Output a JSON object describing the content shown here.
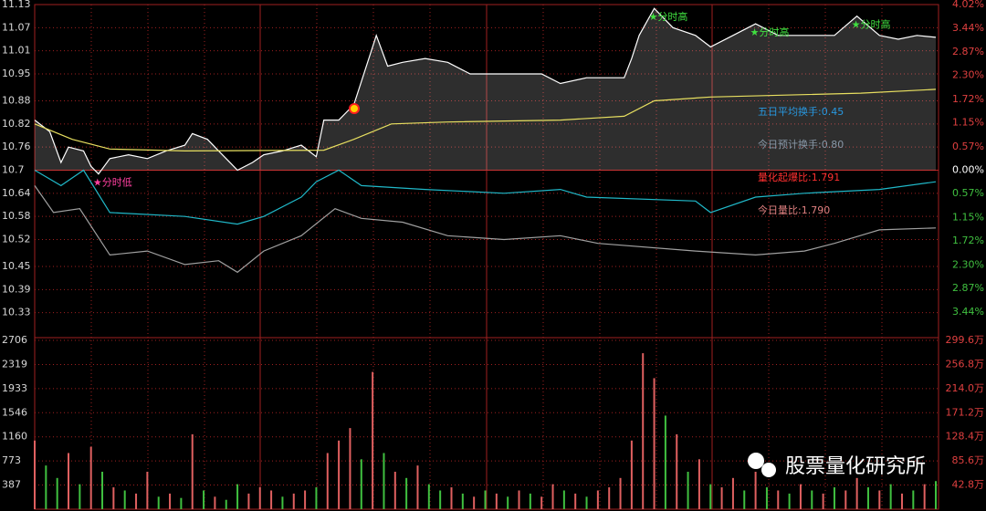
{
  "chart_data": [
    {
      "type": "line",
      "xlim": [
        0,
        240
      ],
      "ylim": [
        10.27,
        11.13
      ],
      "yticks": [
        10.33,
        10.39,
        10.45,
        10.52,
        10.58,
        10.64,
        10.7,
        10.76,
        10.82,
        10.88,
        10.95,
        11.01,
        11.07,
        11.13
      ],
      "y2lim": [
        -4.02,
        4.02
      ],
      "y2ticks": [
        {
          "value": -3.44,
          "label": "3.44%"
        },
        {
          "value": -2.87,
          "label": "2.87%"
        },
        {
          "value": -2.3,
          "label": "2.30%"
        },
        {
          "value": -1.72,
          "label": "1.72%"
        },
        {
          "value": -1.15,
          "label": "1.15%"
        },
        {
          "value": -0.57,
          "label": "0.57%"
        },
        {
          "value": 0,
          "label": "0.00%"
        },
        {
          "value": 0.57,
          "label": "0.57%"
        },
        {
          "value": 1.15,
          "label": "1.15%"
        },
        {
          "value": 1.72,
          "label": "1.72%"
        },
        {
          "value": 2.3,
          "label": "2.30%"
        },
        {
          "value": 2.87,
          "label": "2.87%"
        },
        {
          "value": 3.44,
          "label": "3.44%"
        },
        {
          "value": 4.02,
          "label": "4.02%"
        }
      ],
      "series": [
        {
          "color": "#ffffff",
          "x": [
            0,
            4,
            7,
            9,
            13,
            15,
            17,
            20,
            25,
            30,
            35,
            40,
            42,
            46,
            49,
            54,
            58,
            61,
            66,
            71,
            75,
            77,
            81,
            85,
            87,
            91,
            94,
            98,
            104,
            110,
            116,
            125,
            135,
            140,
            147,
            157,
            159,
            161,
            165,
            170,
            176,
            180,
            186,
            192,
            198,
            205,
            213,
            219,
            225,
            230,
            235,
            240
          ],
          "values": [
            10.83,
            10.8,
            10.72,
            10.76,
            10.75,
            10.71,
            10.69,
            10.73,
            10.74,
            10.73,
            10.75,
            10.765,
            10.795,
            10.78,
            10.75,
            10.7,
            10.72,
            10.74,
            10.75,
            10.765,
            10.735,
            10.83,
            10.83,
            10.87,
            10.93,
            11.05,
            10.97,
            10.98,
            10.99,
            10.98,
            10.95,
            10.95,
            10.95,
            10.925,
            10.94,
            10.94,
            10.99,
            11.05,
            11.12,
            11.07,
            11.05,
            11.02,
            11.05,
            11.08,
            11.05,
            11.05,
            11.05,
            11.1,
            11.05,
            11.04,
            11.05,
            11.045
          ]
        },
        {
          "color": "#e8e060",
          "x": [
            0,
            10,
            20,
            40,
            77,
            85,
            95,
            110,
            140,
            157,
            165,
            180,
            220,
            240
          ],
          "values": [
            10.82,
            10.78,
            10.755,
            10.75,
            10.752,
            10.78,
            10.82,
            10.825,
            10.83,
            10.84,
            10.88,
            10.89,
            10.9,
            10.91
          ]
        },
        {
          "color": "#20b8c8",
          "x": [
            0,
            7,
            13,
            20,
            40,
            54,
            61,
            71,
            75,
            81,
            87,
            104,
            125,
            140,
            147,
            176,
            180,
            192,
            205,
            225,
            240
          ],
          "values": [
            10.7,
            10.66,
            10.7,
            10.59,
            10.58,
            10.56,
            10.58,
            10.63,
            10.67,
            10.7,
            10.66,
            10.65,
            10.64,
            10.65,
            10.63,
            10.62,
            10.59,
            10.63,
            10.64,
            10.65,
            10.67
          ]
        },
        {
          "color": "#a0a0a0",
          "x": [
            0,
            5,
            12,
            20,
            30,
            40,
            49,
            54,
            61,
            71,
            80,
            87,
            98,
            110,
            125,
            140,
            150,
            176,
            192,
            205,
            213,
            225,
            240
          ],
          "values": [
            10.66,
            10.59,
            10.6,
            10.48,
            10.49,
            10.455,
            10.465,
            10.435,
            10.49,
            10.53,
            10.6,
            10.575,
            10.565,
            10.53,
            10.52,
            10.53,
            10.51,
            10.49,
            10.48,
            10.49,
            10.51,
            10.545,
            10.55
          ]
        }
      ],
      "annotations": [
        {
          "text": "★分时低",
          "x": 17,
          "y": 10.69,
          "color": "#ff40a0"
        },
        {
          "text": "★分时高",
          "x": 165,
          "y": 11.12,
          "color": "#40e040"
        },
        {
          "text": "★分时高",
          "x": 192,
          "y": 11.08,
          "color": "#40e040"
        },
        {
          "text": "★分时高",
          "x": 219,
          "y": 11.1,
          "color": "#40e040"
        }
      ],
      "texts": [
        {
          "text": "五日平均换手:0.45",
          "color": "#2898e0"
        },
        {
          "text": "今日预计换手:0.80",
          "color": "#8898a8"
        },
        {
          "text": "量化起爆比:1.791",
          "color": "#ff3030"
        },
        {
          "text": "今日量比:1.790",
          "color": "#e08080"
        }
      ]
    },
    {
      "type": "bar",
      "xlim": [
        0,
        240
      ],
      "ylim": [
        0,
        2706
      ],
      "yticks": [
        387,
        773,
        1160,
        1546,
        1933,
        2319,
        2706
      ],
      "y2lim": [
        0,
        299.6
      ],
      "y2ticks": [
        {
          "value": 42.8,
          "label": "42.8万"
        },
        {
          "value": 85.6,
          "label": "85.6万"
        },
        {
          "value": 128.4,
          "label": "128.4万"
        },
        {
          "value": 171.2,
          "label": "171.2万"
        },
        {
          "value": 214.0,
          "label": "214.0万"
        },
        {
          "value": 256.8,
          "label": "256.8万"
        },
        {
          "value": 299.6,
          "label": "299.6万"
        }
      ],
      "x": [
        0,
        3,
        6,
        9,
        12,
        15,
        18,
        21,
        24,
        27,
        30,
        33,
        36,
        39,
        42,
        45,
        48,
        51,
        54,
        57,
        60,
        63,
        66,
        69,
        72,
        75,
        78,
        81,
        84,
        87,
        90,
        93,
        96,
        99,
        102,
        105,
        108,
        111,
        114,
        117,
        120,
        123,
        126,
        129,
        132,
        135,
        138,
        141,
        144,
        147,
        150,
        153,
        156,
        159,
        162,
        165,
        168,
        171,
        174,
        177,
        180,
        183,
        186,
        189,
        192,
        195,
        198,
        201,
        204,
        207,
        210,
        213,
        216,
        219,
        222,
        225,
        228,
        231,
        234,
        237,
        240
      ],
      "values": [
        1100,
        700,
        500,
        900,
        400,
        1000,
        600,
        350,
        300,
        250,
        600,
        200,
        250,
        180,
        1200,
        300,
        200,
        150,
        400,
        250,
        350,
        300,
        200,
        250,
        300,
        350,
        900,
        1100,
        1300,
        800,
        2200,
        900,
        600,
        500,
        700,
        400,
        300,
        350,
        250,
        200,
        300,
        250,
        200,
        300,
        250,
        200,
        400,
        300,
        250,
        200,
        300,
        350,
        500,
        1100,
        2500,
        2100,
        1500,
        1200,
        600,
        800,
        400,
        350,
        500,
        300,
        600,
        350,
        300,
        250,
        400,
        300,
        250,
        350,
        300,
        500,
        350,
        300,
        400,
        250,
        300,
        400,
        450
      ],
      "colors": [
        "#e06060",
        "#40c040",
        "#40c040",
        "#e06060",
        "#40c040",
        "#e06060",
        "#40c040",
        "#e06060",
        "#40c040",
        "#e06060",
        "#e06060",
        "#40c040",
        "#e06060",
        "#40c040",
        "#e06060",
        "#40c040",
        "#e06060",
        "#40c040",
        "#40c040",
        "#e06060",
        "#e06060",
        "#e06060",
        "#40c040",
        "#e06060",
        "#e06060",
        "#40c040",
        "#e06060",
        "#e06060",
        "#e06060",
        "#40c040",
        "#e06060",
        "#40c040",
        "#e06060",
        "#40c040",
        "#e06060",
        "#40c040",
        "#40c040",
        "#e06060",
        "#40c040",
        "#e06060",
        "#40c040",
        "#e06060",
        "#40c040",
        "#e06060",
        "#40c040",
        "#e06060",
        "#e06060",
        "#40c040",
        "#e06060",
        "#40c040",
        "#e06060",
        "#e06060",
        "#e06060",
        "#e06060",
        "#e06060",
        "#e06060",
        "#40c040",
        "#e06060",
        "#40c040",
        "#e06060",
        "#40c040",
        "#e06060",
        "#e06060",
        "#40c040",
        "#e06060",
        "#40c040",
        "#e06060",
        "#40c040",
        "#e06060",
        "#40c040",
        "#e06060",
        "#40c040",
        "#e06060",
        "#e06060",
        "#40c040",
        "#e06060",
        "#40c040",
        "#e06060",
        "#40c040",
        "#e06060",
        "#40c040"
      ]
    }
  ],
  "watermark": "股票量化研究所"
}
